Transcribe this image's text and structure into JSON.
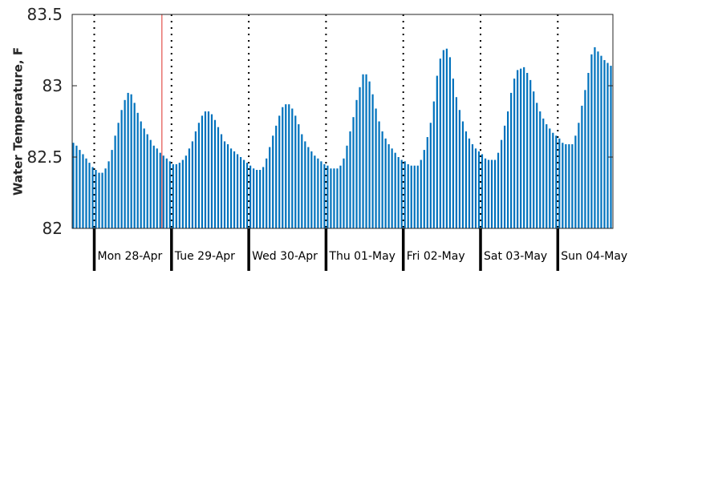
{
  "chart_data": {
    "type": "bar",
    "ylabel": "Water Temperature, F",
    "ylim": [
      82,
      83.5
    ],
    "yticks": [
      {
        "value": 82,
        "label": "82"
      },
      {
        "value": 82.5,
        "label": "82.5"
      },
      {
        "value": 83,
        "label": "83"
      },
      {
        "value": 83.5,
        "label": "83.5"
      }
    ],
    "grid": false,
    "bar_color": "#0072bd",
    "marker_color": "#e8756f",
    "marker_hour": 21,
    "start_hour": -7,
    "days": [
      {
        "label": "Mon 28-Apr"
      },
      {
        "label": "Tue 29-Apr"
      },
      {
        "label": "Wed 30-Apr"
      },
      {
        "label": "Thu 01-May"
      },
      {
        "label": "Fri 02-May"
      },
      {
        "label": "Sat 03-May"
      },
      {
        "label": "Sun 04-May"
      }
    ],
    "values": [
      82.6,
      82.58,
      82.55,
      82.52,
      82.49,
      82.46,
      82.43,
      82.41,
      82.39,
      82.39,
      82.42,
      82.47,
      82.55,
      82.65,
      82.74,
      82.83,
      82.9,
      82.95,
      82.94,
      82.88,
      82.81,
      82.75,
      82.7,
      82.66,
      82.62,
      82.58,
      82.56,
      82.53,
      82.51,
      82.49,
      82.47,
      82.45,
      82.45,
      82.46,
      82.48,
      82.51,
      82.56,
      82.61,
      82.68,
      82.74,
      82.79,
      82.82,
      82.82,
      82.8,
      82.76,
      82.71,
      82.66,
      82.61,
      82.59,
      82.56,
      82.54,
      82.52,
      82.5,
      82.48,
      82.46,
      82.44,
      82.42,
      82.41,
      82.41,
      82.43,
      82.49,
      82.57,
      82.65,
      82.72,
      82.79,
      82.85,
      82.87,
      82.87,
      82.84,
      82.79,
      82.73,
      82.66,
      82.61,
      82.57,
      82.54,
      82.51,
      82.49,
      82.47,
      82.45,
      82.44,
      82.42,
      82.42,
      82.42,
      82.44,
      82.49,
      82.58,
      82.68,
      82.78,
      82.9,
      82.99,
      83.08,
      83.08,
      83.03,
      82.94,
      82.84,
      82.75,
      82.68,
      82.63,
      82.59,
      82.56,
      82.53,
      82.5,
      82.48,
      82.47,
      82.45,
      82.44,
      82.44,
      82.44,
      82.48,
      82.55,
      82.64,
      82.74,
      82.89,
      83.07,
      83.19,
      83.25,
      83.26,
      83.2,
      83.05,
      82.92,
      82.83,
      82.75,
      82.68,
      82.63,
      82.59,
      82.56,
      82.54,
      82.52,
      82.49,
      82.48,
      82.48,
      82.48,
      82.53,
      82.62,
      82.72,
      82.82,
      82.95,
      83.05,
      83.11,
      83.12,
      83.13,
      83.09,
      83.04,
      82.96,
      82.88,
      82.82,
      82.77,
      82.73,
      82.7,
      82.67,
      82.65,
      82.63,
      82.6,
      82.59,
      82.59,
      82.59,
      82.65,
      82.74,
      82.86,
      82.97,
      83.09,
      83.22,
      83.27,
      83.24,
      83.21,
      83.18,
      83.16,
      83.14,
      83.09
    ]
  }
}
